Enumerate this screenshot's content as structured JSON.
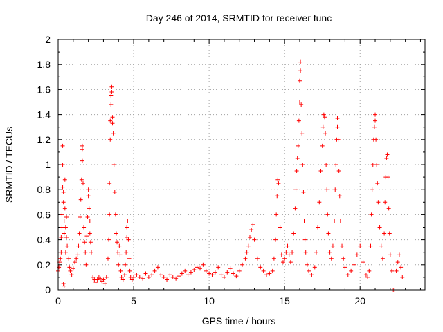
{
  "chart_data": {
    "type": "scatter",
    "title": "Day 246 of 2014, SRMTID for receiver func",
    "xlabel": "GPS time / hours",
    "ylabel": "SRMTID / TECUs",
    "xlim": [
      0,
      24.3
    ],
    "ylim": [
      0,
      2
    ],
    "grid": true,
    "marker": "+",
    "colors": {
      "series": "#ff0000",
      "grid": "#a0a0a0",
      "axis": "#000000"
    },
    "x_ticks": [
      {
        "value": 0,
        "label": "0"
      },
      {
        "value": 5,
        "label": "5"
      },
      {
        "value": 10,
        "label": "10"
      },
      {
        "value": 15,
        "label": "15"
      },
      {
        "value": 20,
        "label": "20"
      }
    ],
    "y_ticks": [
      {
        "value": 0,
        "label": "0"
      },
      {
        "value": 0.2,
        "label": "0.2"
      },
      {
        "value": 0.4,
        "label": "0.4"
      },
      {
        "value": 0.6,
        "label": "0.6"
      },
      {
        "value": 0.8,
        "label": "0.8"
      },
      {
        "value": 1,
        "label": "1"
      },
      {
        "value": 1.2,
        "label": "1.2"
      },
      {
        "value": 1.4,
        "label": "1.4"
      },
      {
        "value": 1.6,
        "label": "1.6"
      },
      {
        "value": 1.8,
        "label": "1.8"
      },
      {
        "value": 2,
        "label": "2"
      }
    ],
    "series": [
      {
        "name": "SRMTID",
        "points": [
          [
            0.0,
            0.15
          ],
          [
            0.05,
            0.18
          ],
          [
            0.1,
            0.22
          ],
          [
            0.15,
            0.25
          ],
          [
            0.2,
            0.3
          ],
          [
            0.2,
            0.42
          ],
          [
            0.25,
            0.5
          ],
          [
            0.25,
            0.6
          ],
          [
            0.3,
            0.82
          ],
          [
            0.3,
            1.0
          ],
          [
            0.3,
            1.15
          ],
          [
            0.35,
            0.78
          ],
          [
            0.35,
            0.7
          ],
          [
            0.4,
            0.55
          ],
          [
            0.4,
            0.45
          ],
          [
            0.45,
            0.88
          ],
          [
            0.45,
            0.65
          ],
          [
            0.5,
            0.5
          ],
          [
            0.5,
            0.3
          ],
          [
            0.55,
            0.58
          ],
          [
            0.55,
            0.42
          ],
          [
            0.35,
            0.05
          ],
          [
            0.4,
            0.03
          ],
          [
            0.6,
            0.35
          ],
          [
            0.7,
            0.25
          ],
          [
            0.75,
            0.18
          ],
          [
            0.8,
            0.15
          ],
          [
            0.9,
            0.12
          ],
          [
            1.0,
            0.17
          ],
          [
            1.1,
            0.22
          ],
          [
            1.2,
            0.25
          ],
          [
            1.3,
            0.28
          ],
          [
            1.35,
            0.35
          ],
          [
            1.4,
            0.45
          ],
          [
            1.45,
            0.58
          ],
          [
            1.5,
            0.72
          ],
          [
            1.55,
            0.88
          ],
          [
            1.6,
            1.12
          ],
          [
            1.6,
            1.15
          ],
          [
            1.6,
            1.03
          ],
          [
            1.65,
            0.85
          ],
          [
            1.7,
            0.5
          ],
          [
            1.75,
            0.38
          ],
          [
            1.8,
            0.3
          ],
          [
            1.85,
            0.2
          ],
          [
            1.9,
            0.43
          ],
          [
            1.95,
            0.58
          ],
          [
            2.0,
            0.75
          ],
          [
            2.0,
            0.8
          ],
          [
            2.05,
            0.65
          ],
          [
            2.1,
            0.55
          ],
          [
            2.1,
            0.45
          ],
          [
            2.15,
            0.38
          ],
          [
            2.2,
            0.3
          ],
          [
            2.3,
            0.1
          ],
          [
            2.4,
            0.08
          ],
          [
            2.5,
            0.06
          ],
          [
            2.6,
            0.08
          ],
          [
            2.7,
            0.1
          ],
          [
            2.8,
            0.09
          ],
          [
            2.9,
            0.07
          ],
          [
            3.0,
            0.08
          ],
          [
            3.1,
            0.05
          ],
          [
            3.2,
            0.1
          ],
          [
            3.3,
            0.25
          ],
          [
            3.35,
            0.4
          ],
          [
            3.4,
            0.6
          ],
          [
            3.4,
            0.85
          ],
          [
            3.45,
            1.2
          ],
          [
            3.45,
            1.35
          ],
          [
            3.5,
            1.48
          ],
          [
            3.5,
            1.55
          ],
          [
            3.55,
            1.62
          ],
          [
            3.55,
            1.58
          ],
          [
            3.6,
            1.38
          ],
          [
            3.6,
            1.33
          ],
          [
            3.65,
            1.25
          ],
          [
            3.7,
            1.0
          ],
          [
            3.75,
            0.78
          ],
          [
            3.8,
            0.6
          ],
          [
            3.85,
            0.45
          ],
          [
            3.9,
            0.38
          ],
          [
            3.95,
            0.3
          ],
          [
            4.0,
            0.2
          ],
          [
            4.05,
            0.35
          ],
          [
            4.1,
            0.28
          ],
          [
            4.15,
            0.15
          ],
          [
            4.2,
            0.1
          ],
          [
            4.3,
            0.08
          ],
          [
            4.4,
            0.12
          ],
          [
            4.45,
            0.2
          ],
          [
            4.5,
            0.3
          ],
          [
            4.55,
            0.42
          ],
          [
            4.55,
            0.5
          ],
          [
            4.6,
            0.55
          ],
          [
            4.65,
            0.4
          ],
          [
            4.7,
            0.25
          ],
          [
            4.75,
            0.15
          ],
          [
            4.8,
            0.1
          ],
          [
            4.9,
            0.08
          ],
          [
            5.0,
            0.1
          ],
          [
            5.2,
            0.12
          ],
          [
            5.4,
            0.1
          ],
          [
            5.6,
            0.09
          ],
          [
            5.8,
            0.13
          ],
          [
            6.0,
            0.1
          ],
          [
            6.2,
            0.12
          ],
          [
            6.4,
            0.15
          ],
          [
            6.6,
            0.18
          ],
          [
            6.8,
            0.12
          ],
          [
            7.0,
            0.1
          ],
          [
            7.2,
            0.08
          ],
          [
            7.4,
            0.12
          ],
          [
            7.6,
            0.1
          ],
          [
            7.8,
            0.09
          ],
          [
            8.0,
            0.11
          ],
          [
            8.2,
            0.13
          ],
          [
            8.4,
            0.15
          ],
          [
            8.6,
            0.12
          ],
          [
            8.8,
            0.14
          ],
          [
            9.0,
            0.16
          ],
          [
            9.2,
            0.18
          ],
          [
            9.4,
            0.17
          ],
          [
            9.6,
            0.2
          ],
          [
            9.8,
            0.15
          ],
          [
            10.0,
            0.13
          ],
          [
            10.2,
            0.12
          ],
          [
            10.4,
            0.14
          ],
          [
            10.6,
            0.18
          ],
          [
            10.8,
            0.12
          ],
          [
            11.0,
            0.1
          ],
          [
            11.2,
            0.14
          ],
          [
            11.4,
            0.17
          ],
          [
            11.6,
            0.13
          ],
          [
            11.8,
            0.11
          ],
          [
            12.0,
            0.15
          ],
          [
            12.2,
            0.2
          ],
          [
            12.4,
            0.25
          ],
          [
            12.5,
            0.3
          ],
          [
            12.6,
            0.35
          ],
          [
            12.7,
            0.42
          ],
          [
            12.8,
            0.48
          ],
          [
            12.9,
            0.52
          ],
          [
            13.0,
            0.4
          ],
          [
            13.2,
            0.25
          ],
          [
            13.4,
            0.18
          ],
          [
            13.6,
            0.15
          ],
          [
            13.8,
            0.12
          ],
          [
            14.0,
            0.13
          ],
          [
            14.2,
            0.15
          ],
          [
            14.3,
            0.25
          ],
          [
            14.4,
            0.4
          ],
          [
            14.45,
            0.6
          ],
          [
            14.5,
            0.75
          ],
          [
            14.55,
            0.88
          ],
          [
            14.6,
            0.85
          ],
          [
            14.7,
            0.5
          ],
          [
            14.8,
            0.28
          ],
          [
            14.9,
            0.22
          ],
          [
            15.0,
            0.25
          ],
          [
            15.1,
            0.3
          ],
          [
            15.2,
            0.35
          ],
          [
            15.3,
            0.28
          ],
          [
            15.4,
            0.22
          ],
          [
            15.5,
            0.3
          ],
          [
            15.6,
            0.45
          ],
          [
            15.7,
            0.65
          ],
          [
            15.75,
            0.8
          ],
          [
            15.8,
            0.95
          ],
          [
            15.85,
            1.05
          ],
          [
            15.9,
            1.15
          ],
          [
            15.95,
            1.35
          ],
          [
            16.0,
            1.5
          ],
          [
            16.0,
            1.67
          ],
          [
            16.05,
            1.75
          ],
          [
            16.05,
            1.82
          ],
          [
            16.1,
            1.48
          ],
          [
            16.15,
            1.25
          ],
          [
            16.2,
            1.0
          ],
          [
            16.25,
            0.78
          ],
          [
            16.3,
            0.55
          ],
          [
            16.35,
            0.4
          ],
          [
            16.4,
            0.3
          ],
          [
            16.5,
            0.2
          ],
          [
            16.6,
            0.15
          ],
          [
            16.8,
            0.12
          ],
          [
            17.0,
            0.18
          ],
          [
            17.1,
            0.3
          ],
          [
            17.2,
            0.5
          ],
          [
            17.3,
            0.7
          ],
          [
            17.4,
            0.95
          ],
          [
            17.5,
            1.15
          ],
          [
            17.55,
            1.3
          ],
          [
            17.6,
            1.4
          ],
          [
            17.65,
            1.38
          ],
          [
            17.7,
            1.25
          ],
          [
            17.75,
            1.0
          ],
          [
            17.8,
            0.8
          ],
          [
            17.85,
            0.6
          ],
          [
            17.9,
            0.45
          ],
          [
            18.0,
            0.3
          ],
          [
            18.1,
            0.25
          ],
          [
            18.2,
            0.35
          ],
          [
            18.3,
            0.55
          ],
          [
            18.35,
            0.8
          ],
          [
            18.4,
            1.0
          ],
          [
            18.45,
            1.2
          ],
          [
            18.5,
            1.3
          ],
          [
            18.5,
            1.37
          ],
          [
            18.55,
            1.2
          ],
          [
            18.6,
            0.95
          ],
          [
            18.65,
            0.75
          ],
          [
            18.7,
            0.55
          ],
          [
            18.8,
            0.35
          ],
          [
            18.9,
            0.25
          ],
          [
            19.0,
            0.18
          ],
          [
            19.2,
            0.12
          ],
          [
            19.4,
            0.15
          ],
          [
            19.6,
            0.2
          ],
          [
            19.8,
            0.28
          ],
          [
            20.0,
            0.35
          ],
          [
            20.2,
            0.22
          ],
          [
            20.4,
            0.12
          ],
          [
            20.5,
            0.1
          ],
          [
            20.6,
            0.15
          ],
          [
            20.7,
            0.35
          ],
          [
            20.75,
            0.6
          ],
          [
            20.8,
            0.8
          ],
          [
            20.85,
            1.0
          ],
          [
            20.9,
            1.2
          ],
          [
            20.95,
            1.3
          ],
          [
            21.0,
            1.4
          ],
          [
            21.0,
            1.35
          ],
          [
            21.05,
            1.2
          ],
          [
            21.1,
            1.0
          ],
          [
            21.15,
            0.85
          ],
          [
            21.2,
            0.7
          ],
          [
            21.3,
            0.5
          ],
          [
            21.4,
            0.35
          ],
          [
            21.5,
            0.25
          ],
          [
            21.6,
            0.45
          ],
          [
            21.65,
            0.7
          ],
          [
            21.7,
            0.9
          ],
          [
            21.75,
            1.05
          ],
          [
            21.8,
            1.08
          ],
          [
            21.85,
            0.9
          ],
          [
            21.9,
            0.65
          ],
          [
            21.95,
            0.45
          ],
          [
            22.0,
            0.28
          ],
          [
            22.1,
            0.15
          ],
          [
            22.2,
            0.0
          ],
          [
            22.3,
            0.0
          ],
          [
            22.4,
            0.15
          ],
          [
            22.5,
            0.22
          ],
          [
            22.6,
            0.28
          ],
          [
            22.7,
            0.18
          ],
          [
            22.8,
            0.1
          ]
        ]
      }
    ]
  }
}
